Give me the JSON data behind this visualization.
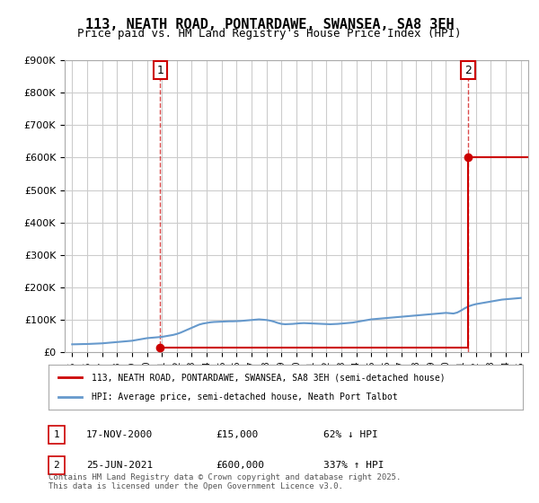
{
  "title": "113, NEATH ROAD, PONTARDAWE, SWANSEA, SA8 3EH",
  "subtitle": "Price paid vs. HM Land Registry's House Price Index (HPI)",
  "title_fontsize": 11,
  "subtitle_fontsize": 9,
  "background_color": "#ffffff",
  "plot_bg_color": "#ffffff",
  "grid_color": "#cccccc",
  "hpi_color": "#6699cc",
  "price_color": "#cc0000",
  "transaction1": {
    "date_num": 2000.88,
    "price": 15000,
    "label": "1",
    "date_str": "17-NOV-2000",
    "pct": "62% ↓ HPI"
  },
  "transaction2": {
    "date_num": 2021.48,
    "price": 600000,
    "label": "2",
    "date_str": "25-JUN-2021",
    "pct": "337% ↑ HPI"
  },
  "legend_label_red": "113, NEATH ROAD, PONTARDAWE, SWANSEA, SA8 3EH (semi-detached house)",
  "legend_label_blue": "HPI: Average price, semi-detached house, Neath Port Talbot",
  "footer": "Contains HM Land Registry data © Crown copyright and database right 2025.\nThis data is licensed under the Open Government Licence v3.0.",
  "annotation1_text": "1",
  "annotation2_text": "2",
  "ylim": [
    0,
    900000
  ],
  "xlim_left": 1994.5,
  "xlim_right": 2025.5,
  "hpi_data_x": [
    1995.0,
    1995.25,
    1995.5,
    1995.75,
    1996.0,
    1996.25,
    1996.5,
    1996.75,
    1997.0,
    1997.25,
    1997.5,
    1997.75,
    1998.0,
    1998.25,
    1998.5,
    1998.75,
    1999.0,
    1999.25,
    1999.5,
    1999.75,
    2000.0,
    2000.25,
    2000.5,
    2000.75,
    2001.0,
    2001.25,
    2001.5,
    2001.75,
    2002.0,
    2002.25,
    2002.5,
    2002.75,
    2003.0,
    2003.25,
    2003.5,
    2003.75,
    2004.0,
    2004.25,
    2004.5,
    2004.75,
    2005.0,
    2005.25,
    2005.5,
    2005.75,
    2006.0,
    2006.25,
    2006.5,
    2006.75,
    2007.0,
    2007.25,
    2007.5,
    2007.75,
    2008.0,
    2008.25,
    2008.5,
    2008.75,
    2009.0,
    2009.25,
    2009.5,
    2009.75,
    2010.0,
    2010.25,
    2010.5,
    2010.75,
    2011.0,
    2011.25,
    2011.5,
    2011.75,
    2012.0,
    2012.25,
    2012.5,
    2012.75,
    2013.0,
    2013.25,
    2013.5,
    2013.75,
    2014.0,
    2014.25,
    2014.5,
    2014.75,
    2015.0,
    2015.25,
    2015.5,
    2015.75,
    2016.0,
    2016.25,
    2016.5,
    2016.75,
    2017.0,
    2017.25,
    2017.5,
    2017.75,
    2018.0,
    2018.25,
    2018.5,
    2018.75,
    2019.0,
    2019.25,
    2019.5,
    2019.75,
    2020.0,
    2020.25,
    2020.5,
    2020.75,
    2021.0,
    2021.25,
    2021.5,
    2021.75,
    2022.0,
    2022.25,
    2022.5,
    2022.75,
    2023.0,
    2023.25,
    2023.5,
    2023.75,
    2024.0,
    2024.25,
    2024.5,
    2024.75,
    2025.0
  ],
  "hpi_data_y": [
    24000,
    24200,
    24500,
    24800,
    25000,
    25500,
    26000,
    26500,
    27000,
    28000,
    29000,
    30000,
    31000,
    32000,
    33000,
    34000,
    35000,
    37000,
    39000,
    41000,
    43000,
    44000,
    45000,
    46000,
    47000,
    49000,
    51000,
    53000,
    56000,
    60000,
    65000,
    70000,
    75000,
    80000,
    85000,
    88000,
    90000,
    92000,
    93000,
    93500,
    94000,
    94500,
    95000,
    95000,
    95500,
    96000,
    97000,
    98000,
    99000,
    100000,
    101000,
    100000,
    99000,
    97000,
    94000,
    90000,
    87000,
    86000,
    86500,
    87000,
    88000,
    89000,
    89500,
    89000,
    88500,
    88000,
    87500,
    87000,
    86500,
    86000,
    86500,
    87000,
    88000,
    89000,
    90000,
    91000,
    93000,
    95000,
    97000,
    99000,
    101000,
    102000,
    103000,
    104000,
    105000,
    106000,
    107000,
    108000,
    109000,
    110000,
    111000,
    112000,
    113000,
    114000,
    115000,
    116000,
    117000,
    118000,
    119000,
    120000,
    121000,
    120000,
    119000,
    122000,
    128000,
    135000,
    141000,
    145000,
    148000,
    150000,
    152000,
    154000,
    156000,
    158000,
    160000,
    162000,
    163000,
    164000,
    165000,
    166000,
    167000
  ],
  "price_data_x": [
    2000.88,
    2021.48
  ],
  "price_data_y": [
    15000,
    600000
  ]
}
